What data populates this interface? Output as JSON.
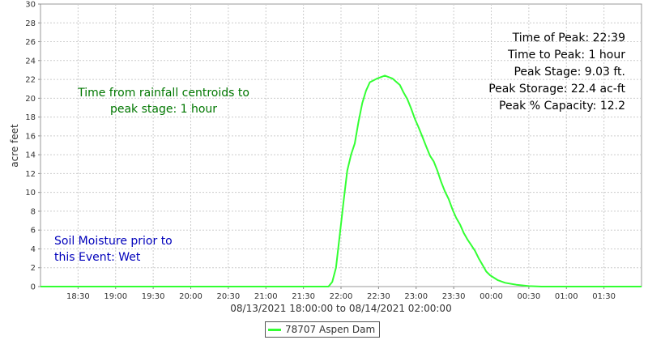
{
  "chart_data": {
    "type": "line",
    "xlabel": "08/13/2021 18:00:00 to 08/14/2021 02:00:00",
    "ylabel": "acre feet",
    "ylim": [
      0,
      30
    ],
    "yticks": [
      0,
      2,
      4,
      6,
      8,
      10,
      12,
      14,
      16,
      18,
      20,
      22,
      24,
      26,
      28,
      30
    ],
    "xlim": [
      "2021-08-13 18:00",
      "2021-08-14 02:00"
    ],
    "xticks": [
      {
        "t": "2021-08-13 18:30",
        "label": "18:30"
      },
      {
        "t": "2021-08-13 19:00",
        "label": "19:00"
      },
      {
        "t": "2021-08-13 19:30",
        "label": "19:30"
      },
      {
        "t": "2021-08-13 20:00",
        "label": "20:00"
      },
      {
        "t": "2021-08-13 20:30",
        "label": "20:30"
      },
      {
        "t": "2021-08-13 21:00",
        "label": "21:00"
      },
      {
        "t": "2021-08-13 21:30",
        "label": "21:30"
      },
      {
        "t": "2021-08-13 22:00",
        "label": "22:00"
      },
      {
        "t": "2021-08-13 22:30",
        "label": "22:30"
      },
      {
        "t": "2021-08-13 23:00",
        "label": "23:00"
      },
      {
        "t": "2021-08-13 23:30",
        "label": "23:30"
      },
      {
        "t": "2021-08-14 00:00",
        "label": "00:00"
      },
      {
        "t": "2021-08-14 00:30",
        "label": "00:30"
      },
      {
        "t": "2021-08-14 01:00",
        "label": "01:00"
      },
      {
        "t": "2021-08-14 01:30",
        "label": "01:30"
      }
    ],
    "grid": true,
    "legend_position": "bottom-center",
    "series": [
      {
        "name": "78707 Aspen Dam",
        "color": "#33ff33",
        "points": [
          [
            "2021-08-13 18:00",
            0
          ],
          [
            "2021-08-13 19:00",
            0
          ],
          [
            "2021-08-13 20:00",
            0
          ],
          [
            "2021-08-13 21:00",
            0
          ],
          [
            "2021-08-13 21:50",
            0
          ],
          [
            "2021-08-13 21:53",
            0.5
          ],
          [
            "2021-08-13 21:56",
            2
          ],
          [
            "2021-08-13 21:59",
            5.5
          ],
          [
            "2021-08-13 22:02",
            9
          ],
          [
            "2021-08-13 22:05",
            12.3
          ],
          [
            "2021-08-13 22:08",
            14
          ],
          [
            "2021-08-13 22:11",
            15.2
          ],
          [
            "2021-08-13 22:14",
            17.5
          ],
          [
            "2021-08-13 22:17",
            19.5
          ],
          [
            "2021-08-13 22:20",
            20.8
          ],
          [
            "2021-08-13 22:23",
            21.7
          ],
          [
            "2021-08-13 22:29",
            22.1
          ],
          [
            "2021-08-13 22:35",
            22.4
          ],
          [
            "2021-08-13 22:41",
            22.1
          ],
          [
            "2021-08-13 22:47",
            21.4
          ],
          [
            "2021-08-13 22:50",
            20.6
          ],
          [
            "2021-08-13 22:53",
            19.9
          ],
          [
            "2021-08-13 22:56",
            18.9
          ],
          [
            "2021-08-13 22:59",
            17.8
          ],
          [
            "2021-08-13 23:02",
            16.9
          ],
          [
            "2021-08-13 23:05",
            15.9
          ],
          [
            "2021-08-13 23:08",
            14.9
          ],
          [
            "2021-08-13 23:11",
            13.9
          ],
          [
            "2021-08-13 23:14",
            13.3
          ],
          [
            "2021-08-13 23:17",
            12.3
          ],
          [
            "2021-08-13 23:20",
            11.1
          ],
          [
            "2021-08-13 23:23",
            10.1
          ],
          [
            "2021-08-13 23:26",
            9.3
          ],
          [
            "2021-08-13 23:29",
            8.2
          ],
          [
            "2021-08-13 23:32",
            7.3
          ],
          [
            "2021-08-13 23:35",
            6.6
          ],
          [
            "2021-08-13 23:38",
            5.7
          ],
          [
            "2021-08-13 23:41",
            5.0
          ],
          [
            "2021-08-13 23:44",
            4.4
          ],
          [
            "2021-08-13 23:47",
            3.8
          ],
          [
            "2021-08-13 23:50",
            3.0
          ],
          [
            "2021-08-13 23:53",
            2.3
          ],
          [
            "2021-08-13 23:56",
            1.6
          ],
          [
            "2021-08-13 23:59",
            1.2
          ],
          [
            "2021-08-14 00:05",
            0.7
          ],
          [
            "2021-08-14 00:11",
            0.4
          ],
          [
            "2021-08-14 00:20",
            0.2
          ],
          [
            "2021-08-14 00:30",
            0.05
          ],
          [
            "2021-08-14 00:40",
            0
          ],
          [
            "2021-08-14 01:00",
            0
          ],
          [
            "2021-08-14 02:00",
            0
          ]
        ]
      }
    ],
    "annotations": {
      "rainfall_line1": "Time from rainfall centroids to",
      "rainfall_line2": "peak stage: 1 hour",
      "rainfall_color": "#007700",
      "soil_line1": "Soil Moisture prior to",
      "soil_line2": "this Event: Wet",
      "soil_color": "#0000bb",
      "peak_lines": [
        "Time of Peak: 22:39",
        "Time to Peak: 1 hour",
        "Peak Stage: 9.03 ft.",
        "Peak Storage: 22.4 ac-ft",
        "Peak % Capacity: 12.2"
      ],
      "peak_color": "#000000"
    }
  }
}
